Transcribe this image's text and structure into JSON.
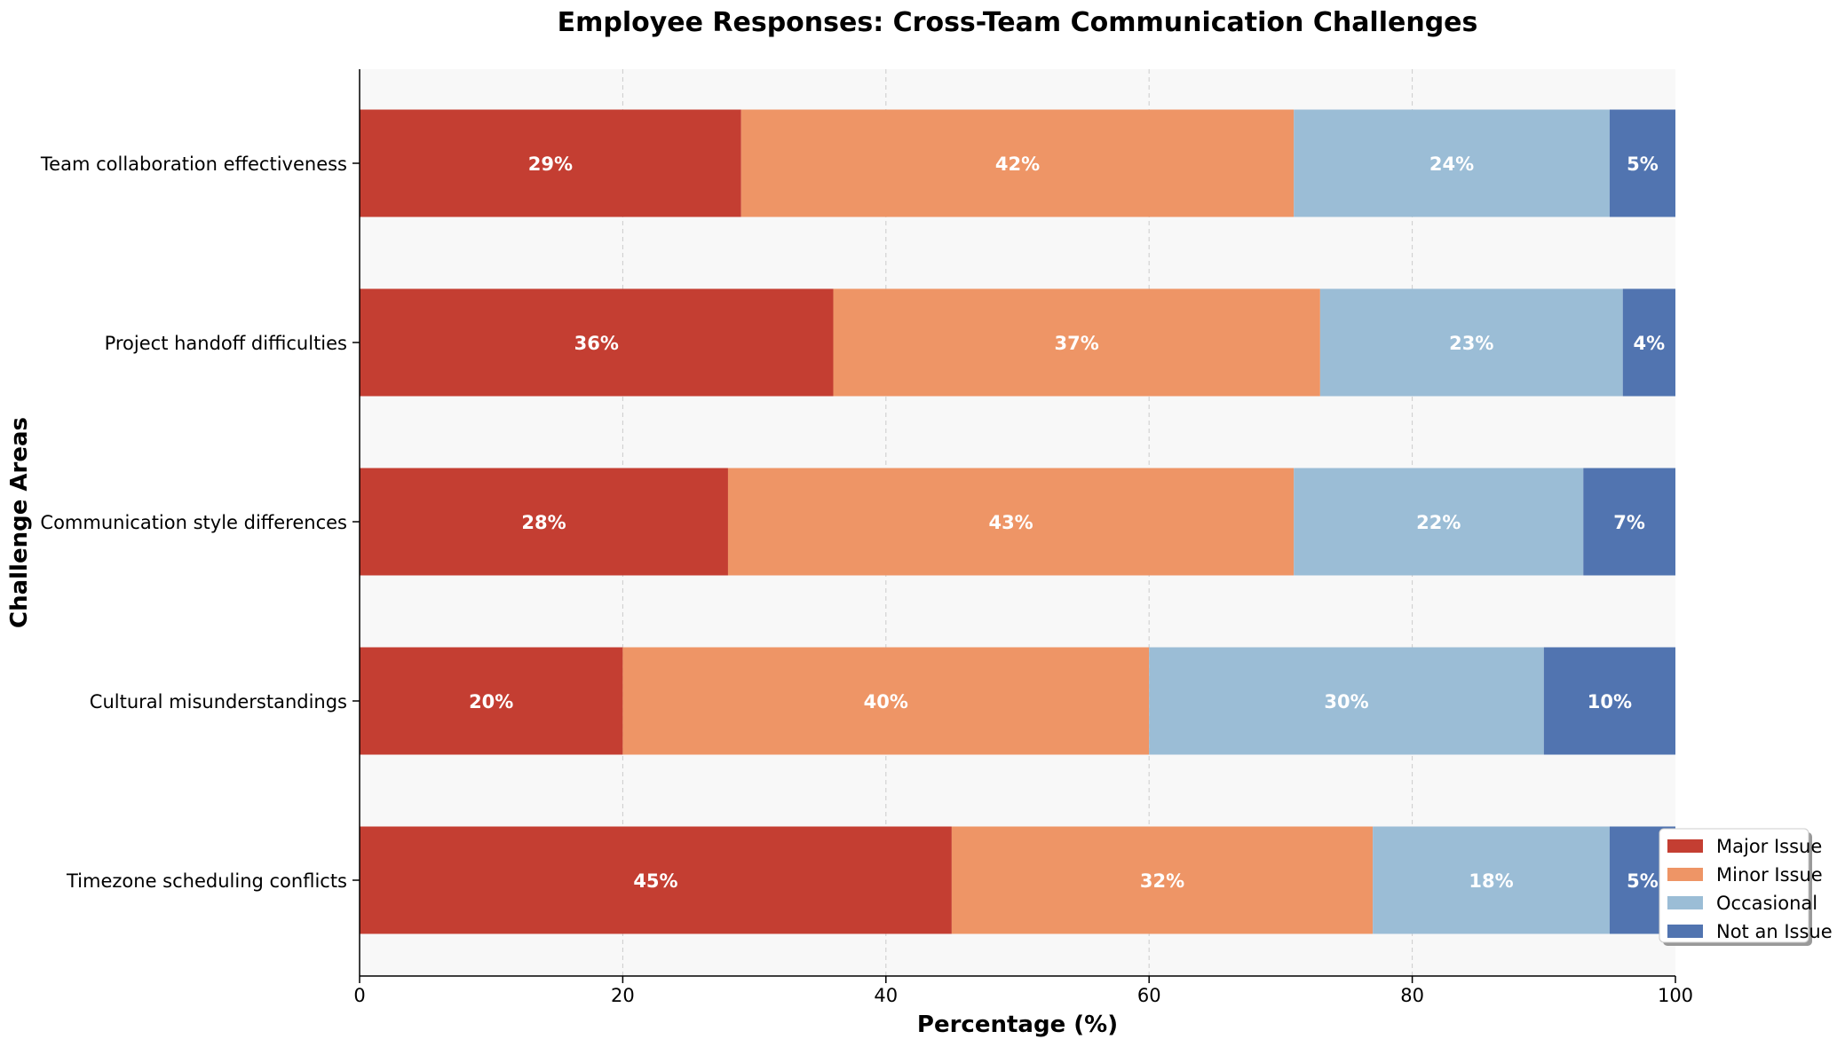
{
  "chart_data": {
    "type": "bar",
    "orientation": "horizontal",
    "stacked": true,
    "title": "Employee Responses: Cross-Team Communication Challenges",
    "xlabel": "Percentage (%)",
    "ylabel": "Challenge Areas",
    "xlim": [
      0,
      100
    ],
    "xticks": [
      "0",
      "20",
      "40",
      "60",
      "80",
      "100"
    ],
    "categories": [
      "Team collaboration effectiveness",
      "Project handoff difficulties",
      "Communication style differences",
      "Cultural misunderstandings",
      "Timezone scheduling conflicts"
    ],
    "series": [
      {
        "name": "Major Issue",
        "color": "#c43e32",
        "values": [
          29,
          36,
          28,
          20,
          45
        ]
      },
      {
        "name": "Minor Issue",
        "color": "#ee9566",
        "values": [
          42,
          37,
          43,
          40,
          32
        ]
      },
      {
        "name": "Occasional",
        "color": "#9bbdd6",
        "values": [
          24,
          23,
          22,
          30,
          18
        ]
      },
      {
        "name": "Not an Issue",
        "color": "#5174b0",
        "values": [
          5,
          4,
          7,
          10,
          5
        ]
      }
    ],
    "data_label_suffix": "%",
    "grid": "x-dashed",
    "legend_position": "lower-right",
    "plot_background": "#f8f8f8"
  }
}
